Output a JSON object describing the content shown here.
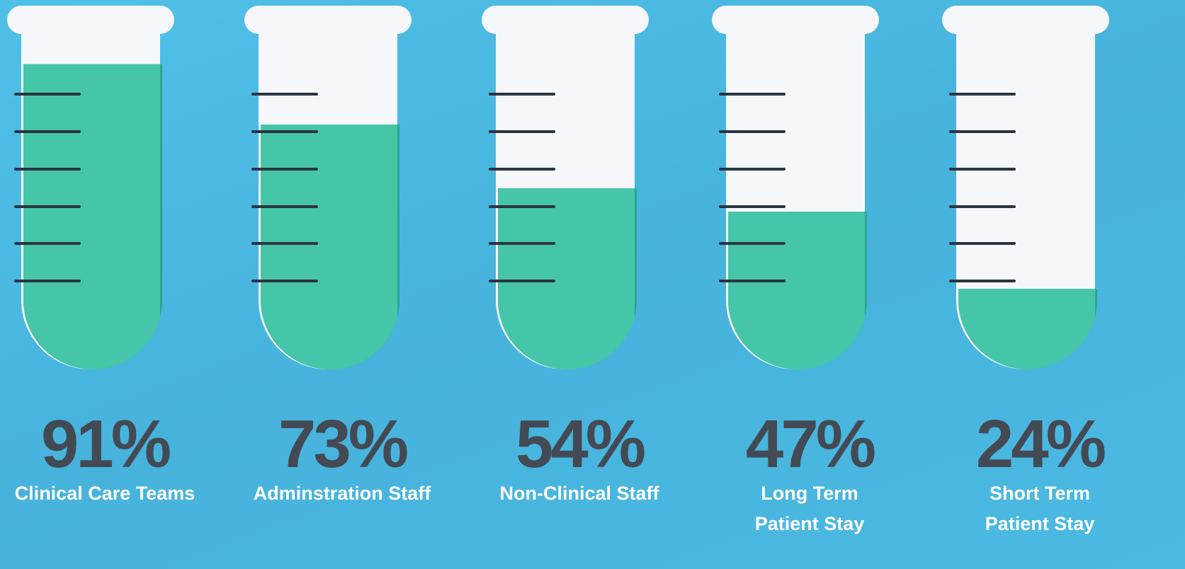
{
  "chart_data": {
    "type": "tube",
    "categories": [
      "Clinical Care Teams",
      "Adminstration Staff",
      "Non-Clinical Staff",
      "Long Term Patient Stay",
      "Short Term Patient Stay"
    ],
    "values": [
      91,
      73,
      54,
      47,
      24
    ],
    "value_labels": [
      "91%",
      "73%",
      "54%",
      "47%",
      "24%"
    ],
    "color": "#46c6a8"
  }
}
